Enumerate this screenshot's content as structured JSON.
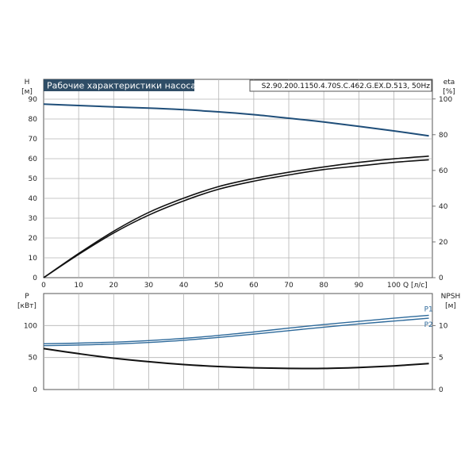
{
  "chart_data": {
    "type": "line",
    "title": "Рабочие характеристики насоса",
    "model": "S2.90.200.1150.4.70S.C.462.G.EX.D.513, 50Hz",
    "colors": {
      "grid": "#b4b4b4",
      "frame": "#555555",
      "head": "#1f4e79",
      "eta": "#111111",
      "power": "#2e6a9b",
      "npsh": "#111111",
      "title_bg": "#2f4d66"
    },
    "x": {
      "label": "Q [л/с]",
      "range": [
        0,
        111
      ],
      "ticks": [
        "0",
        "10",
        "20",
        "30",
        "40",
        "50",
        "60",
        "70",
        "80",
        "90",
        "100"
      ]
    },
    "top": {
      "left_axis": {
        "label": "H",
        "unit": "[м]",
        "range": [
          0,
          100
        ],
        "ticks": [
          "0",
          "10",
          "20",
          "30",
          "40",
          "50",
          "60",
          "70",
          "80",
          "90"
        ]
      },
      "right_axis": {
        "label": "eta",
        "unit": "[%]",
        "range": [
          0,
          111
        ],
        "ticks": [
          "0",
          "20",
          "40",
          "60",
          "80",
          "100"
        ]
      },
      "series": [
        {
          "axis": "left",
          "color": "#1f4e79",
          "x": [
            0,
            10,
            20,
            30,
            40,
            50,
            60,
            70,
            80,
            90,
            100,
            110
          ],
          "y": [
            87.5,
            86.8,
            86.1,
            85.5,
            84.7,
            83.6,
            82.2,
            80.4,
            78.5,
            76.3,
            74.0,
            71.5
          ]
        },
        {
          "axis": "right",
          "color": "#111111",
          "x": [
            0,
            10,
            20,
            30,
            40,
            50,
            60,
            70,
            80,
            90,
            100,
            110
          ],
          "y": [
            0,
            13,
            25,
            35,
            43,
            49.5,
            54,
            57.5,
            60.5,
            62.5,
            64.5,
            66
          ]
        },
        {
          "axis": "right",
          "color": "#111111",
          "x": [
            0,
            10,
            20,
            30,
            40,
            50,
            60,
            70,
            80,
            90,
            100,
            110
          ],
          "y": [
            0,
            13.5,
            26,
            36.5,
            44.5,
            51,
            55.5,
            59,
            62,
            64.5,
            66.5,
            68
          ]
        }
      ]
    },
    "bottom": {
      "left_axis": {
        "label": "P",
        "unit": "[кВт]",
        "range": [
          0,
          150
        ],
        "ticks": [
          "0",
          "50",
          "100"
        ]
      },
      "right_axis": {
        "label": "NPSH",
        "unit": "[м]",
        "range": [
          0,
          15
        ],
        "ticks": [
          "0",
          "5",
          "10"
        ]
      },
      "series": [
        {
          "name": "P1",
          "axis": "left",
          "color": "#2e6a9b",
          "x": [
            0,
            10,
            20,
            30,
            40,
            50,
            60,
            70,
            80,
            90,
            100,
            110
          ],
          "y": [
            71.5,
            72.5,
            74,
            76.5,
            80,
            84.5,
            90,
            96,
            101.5,
            106.5,
            111.5,
            116
          ]
        },
        {
          "name": "P2",
          "axis": "left",
          "color": "#2e6a9b",
          "x": [
            0,
            10,
            20,
            30,
            40,
            50,
            60,
            70,
            80,
            90,
            100,
            110
          ],
          "y": [
            68.5,
            69.5,
            71,
            73.5,
            77,
            81.5,
            86.5,
            92,
            97.5,
            102.5,
            107,
            111.5
          ]
        },
        {
          "axis": "right",
          "color": "#111111",
          "x": [
            0,
            10,
            20,
            30,
            40,
            50,
            60,
            70,
            80,
            90,
            100,
            110
          ],
          "y": [
            6.4,
            5.6,
            4.9,
            4.35,
            3.9,
            3.6,
            3.4,
            3.3,
            3.3,
            3.45,
            3.7,
            4.05
          ]
        }
      ]
    }
  }
}
